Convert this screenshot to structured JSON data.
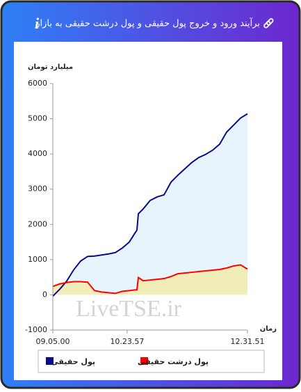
{
  "header": {
    "title": "برآیند ورود و خروج پول حقیقی و پول درشت حقیقی به بازار"
  },
  "chart_data": {
    "type": "area",
    "y_label": "میلیارد تومان",
    "x_label": "زمان",
    "watermark": "LiveTSE.ir",
    "x": [
      32700,
      33143,
      33587,
      34030,
      34473,
      34916,
      35360,
      35803,
      36246,
      36689,
      37133,
      37576,
      37930,
      38063,
      38152,
      38462,
      38906,
      39349,
      39792,
      40235,
      40679,
      41122,
      41565,
      42008,
      42452,
      42895,
      43338,
      43781,
      44225,
      44668,
      45111
    ],
    "series": [
      {
        "name": "پول حقیقی",
        "color": "#0a0a8a",
        "fill": "#e8f4fb",
        "values": [
          -40,
          160,
          390,
          710,
          960,
          1090,
          1100,
          1130,
          1160,
          1200,
          1330,
          1500,
          1750,
          1840,
          2300,
          2440,
          2680,
          2780,
          2840,
          3200,
          3400,
          3580,
          3760,
          3900,
          3990,
          4110,
          4280,
          4620,
          4820,
          5020,
          5140
        ]
      },
      {
        "name": "پول درشت حقیقی",
        "color": "#ff0000",
        "fill": "#f0edb8",
        "values": [
          240,
          310,
          350,
          375,
          375,
          360,
          120,
          80,
          60,
          40,
          100,
          120,
          140,
          140,
          490,
          400,
          420,
          440,
          460,
          520,
          600,
          620,
          640,
          660,
          680,
          700,
          720,
          760,
          820,
          850,
          730
        ]
      }
    ],
    "xlim": [
      32700,
      45111
    ],
    "xticks": [
      {
        "value": 32700,
        "label": "09.05.00"
      },
      {
        "value": 37437,
        "label": "10.23.57"
      },
      {
        "value": 45111,
        "label": "12.31.51"
      }
    ],
    "ylim": [
      -1000,
      6000
    ],
    "yticks": [
      -1000,
      0,
      1000,
      2000,
      3000,
      4000,
      5000,
      6000
    ],
    "grid": false
  }
}
